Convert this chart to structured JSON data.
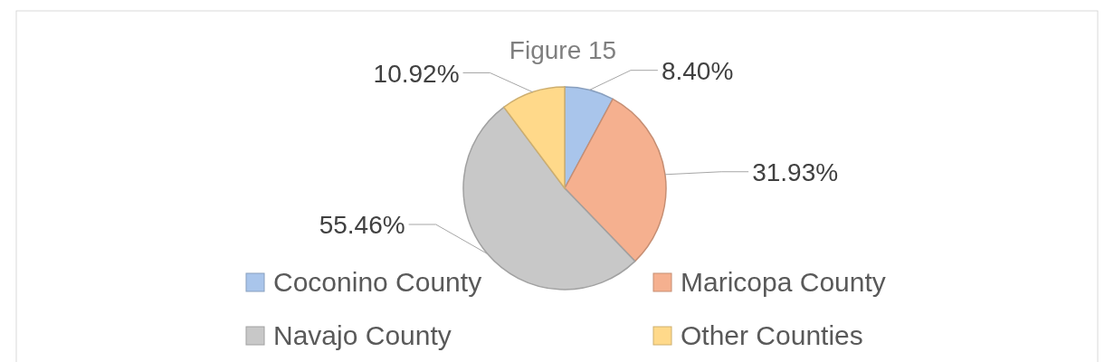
{
  "chart_data": {
    "type": "pie",
    "title": "Figure 15",
    "categories": [
      "Coconino County",
      "Maricopa County",
      "Navajo County",
      "Other Counties"
    ],
    "values": [
      8.4,
      31.93,
      55.46,
      10.92
    ],
    "value_labels": [
      "8.40%",
      "31.93%",
      "55.46%",
      "10.92%"
    ],
    "colors": [
      "#a9c5eb",
      "#f5b08f",
      "#c8c8c8",
      "#ffd98a"
    ],
    "legend": "bottom"
  }
}
